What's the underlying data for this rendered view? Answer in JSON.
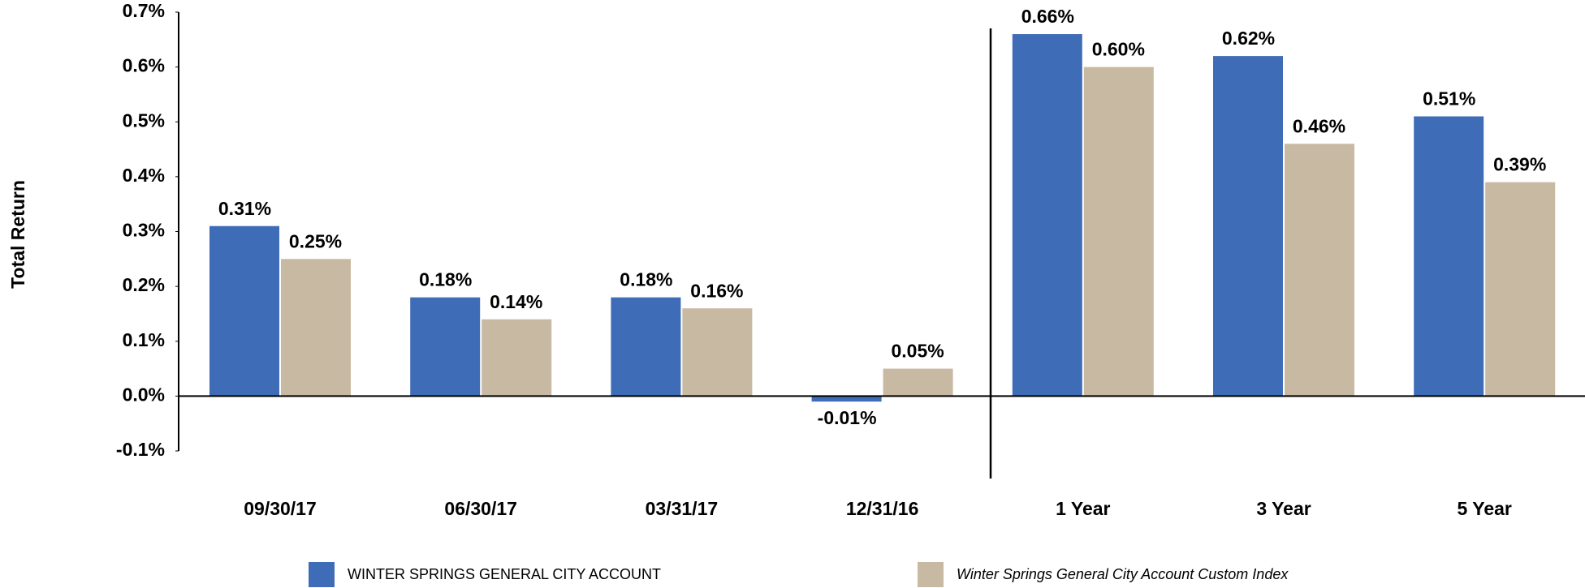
{
  "chart_data": {
    "type": "bar",
    "y_label": "Total Return",
    "categories": [
      "09/30/17",
      "06/30/17",
      "03/31/17",
      "12/31/16",
      "1 Year",
      "3 Year",
      "5 Year"
    ],
    "series": [
      {
        "name": "WINTER SPRINGS GENERAL CITY ACCOUNT",
        "color": "#3f6cb7",
        "values": [
          0.31,
          0.18,
          0.18,
          -0.01,
          0.66,
          0.62,
          0.51
        ],
        "value_labels": [
          "0.31%",
          "0.18%",
          "0.18%",
          "-0.01%",
          "0.66%",
          "0.62%",
          "0.51%"
        ]
      },
      {
        "name": "Winter Springs General City Account Custom Index",
        "color": "#c8b9a3",
        "values": [
          0.25,
          0.14,
          0.16,
          0.05,
          0.6,
          0.46,
          0.39
        ],
        "value_labels": [
          "0.25%",
          "0.14%",
          "0.16%",
          "0.05%",
          "0.60%",
          "0.46%",
          "0.39%"
        ]
      }
    ],
    "ylim": [
      -0.1,
      0.7
    ],
    "yticks": [
      {
        "value": -0.1,
        "label": "-0.1%"
      },
      {
        "value": 0,
        "label": "0.0%"
      },
      {
        "value": 0.1,
        "label": "0.1%"
      },
      {
        "value": 0.2,
        "label": "0.2%"
      },
      {
        "value": 0.3,
        "label": "0.3%"
      },
      {
        "value": 0.4,
        "label": "0.4%"
      },
      {
        "value": 0.5,
        "label": "0.5%"
      },
      {
        "value": 0.6,
        "label": "0.6%"
      },
      {
        "value": 0.7,
        "label": "0.7%"
      }
    ],
    "grid": false
  }
}
